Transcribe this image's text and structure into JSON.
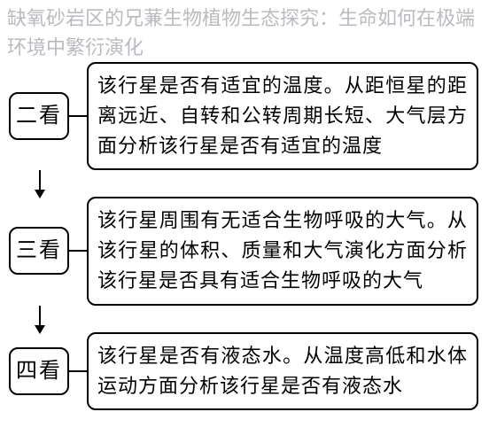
{
  "watermark_text": "缺氧砂岩区的兄蒹生物植物生态探究：生命如何在极端环境中繁衍演化",
  "colors": {
    "border": "#000000",
    "text": "#000000",
    "watermark": "rgba(130,130,140,0.55)",
    "background": "#ffffff"
  },
  "typography": {
    "label_fontsize": 24,
    "content_fontsize": 22,
    "watermark_fontsize": 22,
    "font_family": "SimSun"
  },
  "layout": {
    "box_border_radius": 10,
    "box_border_width": 2,
    "h_connector_length": 20,
    "v_connector_length": 30
  },
  "steps": [
    {
      "label": "二看",
      "content": "该行星是否有适宜的温度。从距恒星的距离远近、自转和公转周期长短、大气层方面分析该行星是否有适宜的温度"
    },
    {
      "label": "三看",
      "content": "该行星周围有无适合生物呼吸的大气。从该行星的体积、质量和大气演化方面分析该行星是否具有适合生物呼吸的大气"
    },
    {
      "label": "四看",
      "content": "该行星是否有液态水。从温度高低和水体运动方面分析该行星是否有液态水"
    }
  ]
}
